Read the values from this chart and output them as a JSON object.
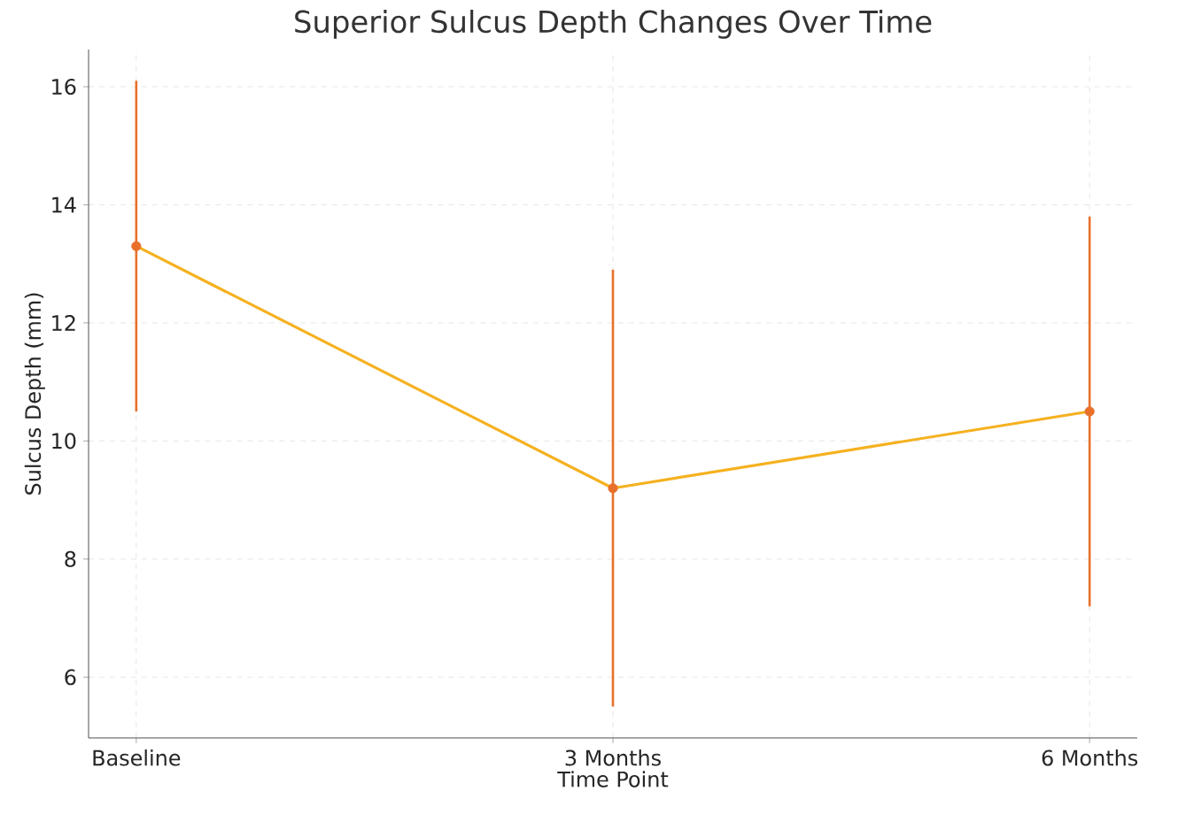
{
  "chart_data": {
    "type": "line",
    "title": "Superior Sulcus Depth Changes Over Time",
    "xlabel": "Time Point",
    "ylabel": "Sulcus Depth (mm)",
    "categories": [
      "Baseline",
      "3 Months",
      "6 Months"
    ],
    "series": [
      {
        "color": "#f5b120",
        "colors": [
          "#e8702a",
          "#e8702a",
          "#e8702a"
        ],
        "values": [
          13.3,
          9.2,
          10.5
        ],
        "errors": [
          2.8,
          3.7,
          3.3
        ]
      }
    ],
    "ylim": [
      4.97,
      16.63
    ],
    "yticks": [
      6,
      8,
      10,
      12,
      14,
      16
    ],
    "grid": true,
    "marker": "circle",
    "line_style": "solid"
  }
}
